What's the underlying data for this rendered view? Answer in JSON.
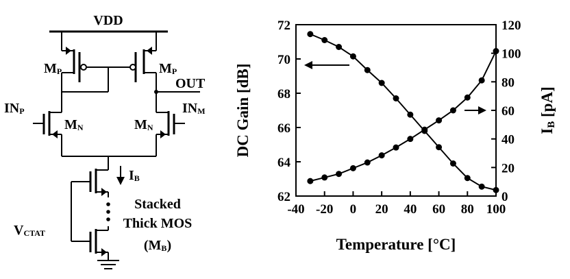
{
  "circuit": {
    "vdd": "VDD",
    "out": "OUT",
    "mp_left": {
      "main": "M",
      "sub": "P"
    },
    "mp_right": {
      "main": "M",
      "sub": "P"
    },
    "inp": {
      "main": "IN",
      "sub": "P"
    },
    "inm": {
      "main": "IN",
      "sub": "M"
    },
    "mn_left": {
      "main": "M",
      "sub": "N"
    },
    "mn_right": {
      "main": "M",
      "sub": "N"
    },
    "ib": {
      "main": "I",
      "sub": "B"
    },
    "vctat": {
      "main": "V",
      "sub": "CTAT"
    },
    "stack_line1": "Stacked",
    "stack_line2": "Thick MOS",
    "stack_line3": {
      "open": "(M",
      "sub": "B",
      "close": ")"
    }
  },
  "chart_data": {
    "type": "line",
    "xlabel": "Temperature [°C]",
    "ylabel_left": "DC Gain [dB]",
    "ylabel_right": {
      "main": "I",
      "sub": "B",
      "rest": " [pA]"
    },
    "xlim": [
      -40,
      100
    ],
    "ylim_left": [
      62,
      72
    ],
    "ylim_right": [
      0,
      120
    ],
    "xticks": [
      -40,
      -20,
      0,
      20,
      40,
      60,
      80,
      100
    ],
    "yticks_left": [
      62,
      64,
      66,
      68,
      70,
      72
    ],
    "yticks_right": [
      0,
      20,
      40,
      60,
      80,
      100,
      120
    ],
    "x": [
      -30,
      -20,
      -10,
      0,
      10,
      20,
      30,
      40,
      50,
      60,
      70,
      80,
      90,
      100
    ],
    "series": [
      {
        "axis": "left",
        "marker": "circle",
        "values": [
          71.45,
          71.1,
          70.7,
          70.15,
          69.35,
          68.6,
          67.7,
          66.75,
          65.8,
          64.85,
          63.9,
          63.05,
          62.55,
          62.35
        ]
      },
      {
        "axis": "right",
        "marker": "circle",
        "values": [
          10.5,
          13,
          15.5,
          19.5,
          23.5,
          28.5,
          34,
          40,
          46.5,
          53,
          60,
          69,
          81,
          101.5
        ]
      }
    ],
    "grid": false,
    "legend": "none",
    "color": "#000000"
  }
}
